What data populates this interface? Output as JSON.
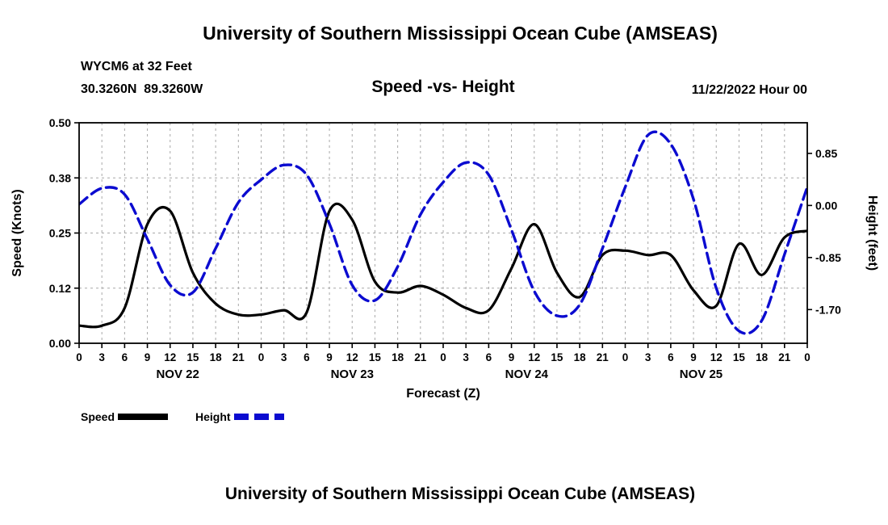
{
  "page": {
    "title_top": "University of Southern Mississippi Ocean Cube (AMSEAS)",
    "title_bottom": "University of Southern Mississippi Ocean Cube (AMSEAS)",
    "station_line1": "WYCM6 at 32 Feet",
    "station_line2": "30.3260N  89.3260W",
    "subtitle": "Speed -vs- Height",
    "datetime": "11/22/2022 Hour 00",
    "legend": [
      {
        "label": "Speed",
        "color": "#000000",
        "dashed": false
      },
      {
        "label": "Height",
        "color": "#0b0bd0",
        "dashed": true
      }
    ]
  },
  "chart_data": {
    "type": "line",
    "title": "Speed -vs- Height",
    "xlabel": "Forecast (Z)",
    "ylabel_left": "Speed (Knots)",
    "ylabel_right": "Height (feet)",
    "grid": true,
    "grid_color": "#9a9a9a",
    "frame_color": "#000000",
    "x_max": 96,
    "x_hours": [
      0,
      3,
      6,
      9,
      12,
      15,
      18,
      21,
      24,
      27,
      30,
      33,
      36,
      39,
      42,
      45,
      48,
      51,
      54,
      57,
      60,
      63,
      66,
      69,
      72,
      75,
      78,
      81,
      84,
      87,
      90,
      93,
      96
    ],
    "x_tick_labels": [
      "0",
      "3",
      "6",
      "9",
      "12",
      "15",
      "18",
      "21",
      "0",
      "3",
      "6",
      "9",
      "12",
      "15",
      "18",
      "21",
      "0",
      "3",
      "6",
      "9",
      "12",
      "15",
      "18",
      "21",
      "0",
      "3",
      "6",
      "9",
      "12",
      "15",
      "18",
      "21",
      "0"
    ],
    "day_labels": [
      "NOV 22",
      "NOV 23",
      "NOV 24",
      "NOV 25"
    ],
    "day_centers_hours": [
      13,
      36,
      59,
      82
    ],
    "left_ylim": [
      0,
      0.5
    ],
    "left_ticks": [
      {
        "v": 0,
        "label": "0.00"
      },
      {
        "v": 0.125,
        "label": "0.12"
      },
      {
        "v": 0.25,
        "label": "0.25"
      },
      {
        "v": 0.375,
        "label": "0.38"
      },
      {
        "v": 0.5,
        "label": "0.50"
      }
    ],
    "right_ylim": [
      -2.25,
      1.35
    ],
    "right_ticks": [
      {
        "v": 0.85,
        "label": "0.85"
      },
      {
        "v": 0,
        "label": "0.00"
      },
      {
        "v": -0.85,
        "label": "-0.85"
      },
      {
        "v": -1.7,
        "label": "-1.70"
      }
    ],
    "series": [
      {
        "name": "Speed",
        "axis": "left",
        "color": "#000000",
        "dash": null,
        "values": [
          0.04,
          0.04,
          0.08,
          0.27,
          0.3,
          0.16,
          0.09,
          0.065,
          0.065,
          0.075,
          0.07,
          0.3,
          0.28,
          0.14,
          0.115,
          0.13,
          0.11,
          0.08,
          0.075,
          0.17,
          0.27,
          0.16,
          0.105,
          0.2,
          0.21,
          0.2,
          0.2,
          0.12,
          0.085,
          0.225,
          0.155,
          0.24,
          0.255
        ]
      },
      {
        "name": "Height",
        "axis": "right",
        "color": "#0b0bd0",
        "dash": [
          13,
          7
        ],
        "values": [
          0.02,
          0.28,
          0.18,
          -0.55,
          -1.3,
          -1.42,
          -0.7,
          0.05,
          0.42,
          0.66,
          0.5,
          -0.3,
          -1.3,
          -1.55,
          -1.0,
          -0.15,
          0.38,
          0.7,
          0.5,
          -0.4,
          -1.4,
          -1.8,
          -1.62,
          -0.7,
          0.3,
          1.15,
          1.0,
          0.1,
          -1.35,
          -2.05,
          -1.88,
          -0.8,
          0.3
        ]
      }
    ]
  }
}
